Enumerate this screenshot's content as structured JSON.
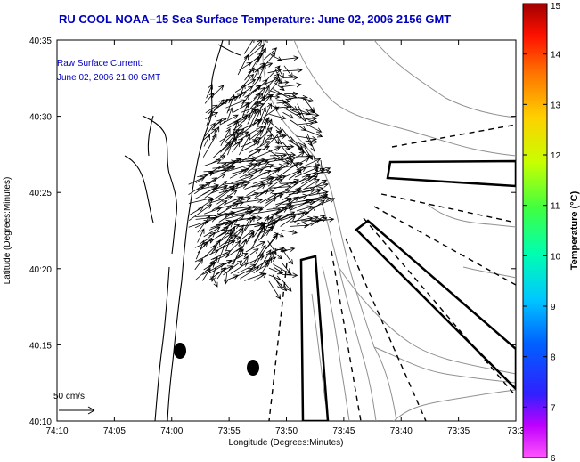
{
  "title": "RU COOL  NOAA–15  Sea Surface Temperature:  June 02, 2006 2156 GMT",
  "inset": {
    "line1": "Raw Surface Current:",
    "line2": "June 02, 2006 21:00 GMT"
  },
  "scale_label": "50 cm/s",
  "axes": {
    "xlabel": "Longitude (Degrees:Minutes)",
    "ylabel": "Latitude (Degrees:Minutes)",
    "xticks": [
      "74:10",
      "74:05",
      "74:00",
      "73:55",
      "73:50",
      "73:45",
      "73:40",
      "73:35",
      "73:3"
    ],
    "yticks": [
      "40:35",
      "40:30",
      "40:25",
      "40:20",
      "40:15",
      "40:10"
    ]
  },
  "colorbar": {
    "label": "Temperature (°C)",
    "ticks": [
      "15",
      "14",
      "13",
      "12",
      "11",
      "10",
      "9",
      "8",
      "7",
      "6"
    ],
    "min": 6,
    "max": 15
  },
  "colors": {
    "title": "#0000c0",
    "land_contour": "#000000",
    "bathymetry": "#909090"
  }
}
